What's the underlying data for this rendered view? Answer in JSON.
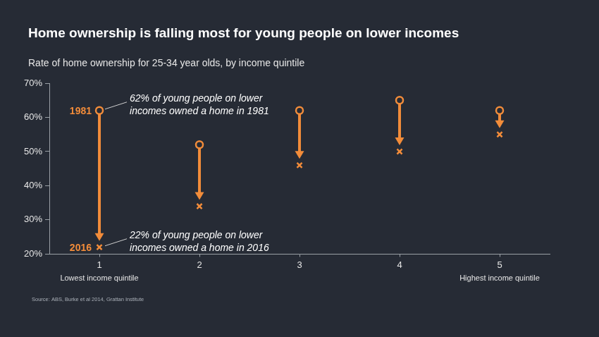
{
  "chart_data": {
    "type": "dumbbell",
    "title": "Home ownership is falling most for young people on lower incomes",
    "subtitle": "Rate of home ownership for 25-34 year olds, by income quintile",
    "categories": [
      "1",
      "2",
      "3",
      "4",
      "5"
    ],
    "series": [
      {
        "name": "1981",
        "color": "#f28c3a",
        "marker": "circle",
        "values": [
          62,
          52,
          62,
          65,
          62
        ]
      },
      {
        "name": "2016",
        "color": "#f28c3a",
        "marker": "x",
        "values": [
          22,
          34,
          46,
          50,
          55
        ]
      }
    ],
    "ylim": [
      20,
      70
    ],
    "yticks": [
      {
        "value": 20,
        "label": "20%"
      },
      {
        "value": 30,
        "label": "30%"
      },
      {
        "value": 40,
        "label": "40%"
      },
      {
        "value": 50,
        "label": "50%"
      },
      {
        "value": 60,
        "label": "60%"
      },
      {
        "value": 70,
        "label": "70%"
      }
    ],
    "grid": false,
    "annotations": [
      {
        "text": "62% of young people on lower\nincomes owned a home in 1981",
        "series": "1981",
        "category": "1"
      },
      {
        "text": "22% of young people on lower\nincomes owned a home in 2016",
        "series": "2016",
        "category": "1"
      },
      {
        "text": "Lowest income quintile",
        "category": "1"
      },
      {
        "text": "Highest income quintile",
        "category": "5"
      }
    ],
    "source": "Source: ABS, Burke et al 2014, Grattan Institute"
  }
}
